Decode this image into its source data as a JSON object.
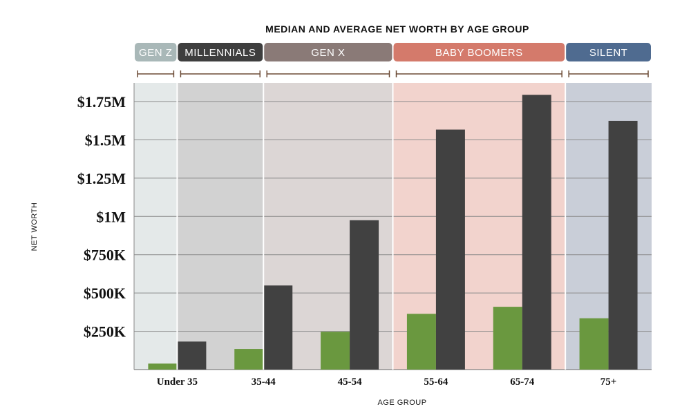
{
  "chart_data": {
    "type": "bar",
    "title": "MEDIAN AND AVERAGE NET WORTH BY AGE GROUP",
    "xlabel": "AGE GROUP",
    "ylabel": "NET WORTH",
    "categories": [
      "Under 35",
      "35-44",
      "45-54",
      "55-64",
      "65-74",
      "75+"
    ],
    "series": [
      {
        "values": [
          39000,
          135000,
          247000,
          364000,
          410000,
          335000
        ],
        "color": "#6a983f"
      },
      {
        "values": [
          183000,
          549000,
          975000,
          1567000,
          1794000,
          1624000
        ],
        "color": "#414141"
      }
    ],
    "ylim": [
      0,
      1750000
    ],
    "yticks": [
      {
        "value": 250000,
        "label": "$250K"
      },
      {
        "value": 500000,
        "label": "$500K"
      },
      {
        "value": 750000,
        "label": "$750K"
      },
      {
        "value": 1000000,
        "label": "$1M"
      },
      {
        "value": 1250000,
        "label": "$1.25M"
      },
      {
        "value": 1500000,
        "label": "$1.5M"
      },
      {
        "value": 1750000,
        "label": "$1.75M"
      }
    ],
    "grid": true,
    "generations": [
      {
        "label": "GEN Z",
        "color": "#a9b8b8",
        "bg": "#e4e9e9",
        "cat_start": 0,
        "cat_end": 0.5
      },
      {
        "label": "MILLENNIALS",
        "color": "#3e3e3e",
        "bg": "#d2d2d2",
        "cat_start": 0.5,
        "cat_end": 1.5
      },
      {
        "label": "GEN X",
        "color": "#8a7a77",
        "bg": "#dcd6d5",
        "cat_start": 1.5,
        "cat_end": 3.0
      },
      {
        "label": "BABY BOOMERS",
        "color": "#d47a6b",
        "bg": "#f2d3cd",
        "cat_start": 3.0,
        "cat_end": 5.0
      },
      {
        "label": "SILENT",
        "color": "#4f6b90",
        "bg": "#c9ced8",
        "cat_start": 5.0,
        "cat_end": 6.0
      }
    ]
  }
}
